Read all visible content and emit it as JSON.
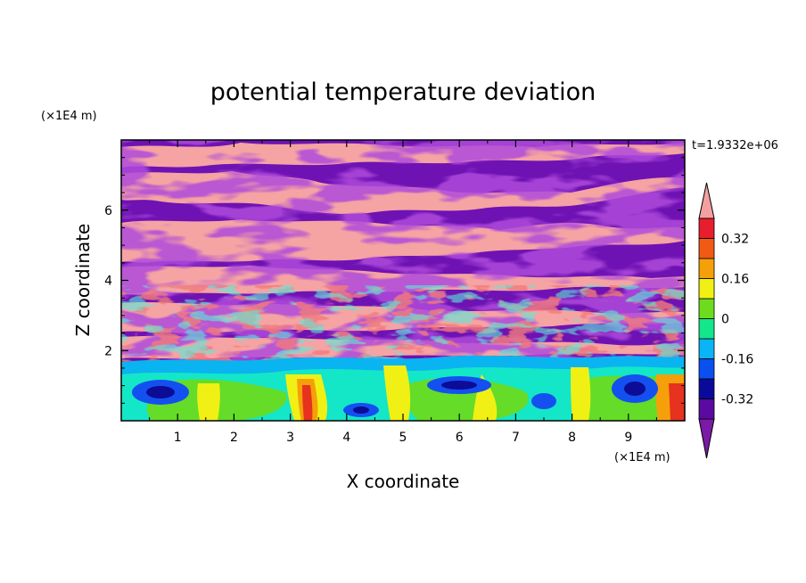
{
  "chart_data": {
    "type": "heatmap",
    "title": "potential temperature deviation",
    "xlabel": "X coordinate",
    "ylabel": "Z coordinate",
    "x_unit": "(×1E4 m)",
    "y_unit": "(×1E4 m)",
    "time_label": "t=1.9332e+06",
    "xlim": [
      0,
      10
    ],
    "ylim": [
      0,
      8
    ],
    "x_ticks": [
      "1",
      "2",
      "3",
      "4",
      "5",
      "6",
      "7",
      "8",
      "9"
    ],
    "y_ticks": [
      "2",
      "4",
      "6"
    ],
    "colorbar": {
      "labels": [
        "0.32",
        "0.16",
        "0",
        "-0.16",
        "-0.32"
      ],
      "label_values": [
        0.32,
        0.16,
        0,
        -0.16,
        -0.32
      ],
      "levels": [
        -0.4,
        -0.32,
        -0.24,
        -0.16,
        -0.08,
        0,
        0.08,
        0.16,
        0.24,
        0.32,
        0.4
      ],
      "colors": [
        "#5a0aa0",
        "#0a0a9a",
        "#0a50f0",
        "#0ab4f5",
        "#14e68c",
        "#6edc1e",
        "#f0f014",
        "#f5a00a",
        "#f05a14",
        "#e61e2d"
      ],
      "under_color": "#7a1aa6",
      "over_color": "#f5a0a0",
      "extend": "both"
    }
  },
  "colors": {
    "purple": "#6e12b4",
    "pink": "#f5a3a3",
    "navy": "#0c0c96",
    "blue": "#1450f0",
    "cyan": "#0ab4f0",
    "aqua": "#14e6c8",
    "green": "#64dc28",
    "yellow": "#f0f014",
    "orange": "#f5a00a",
    "red": "#e6321e"
  }
}
